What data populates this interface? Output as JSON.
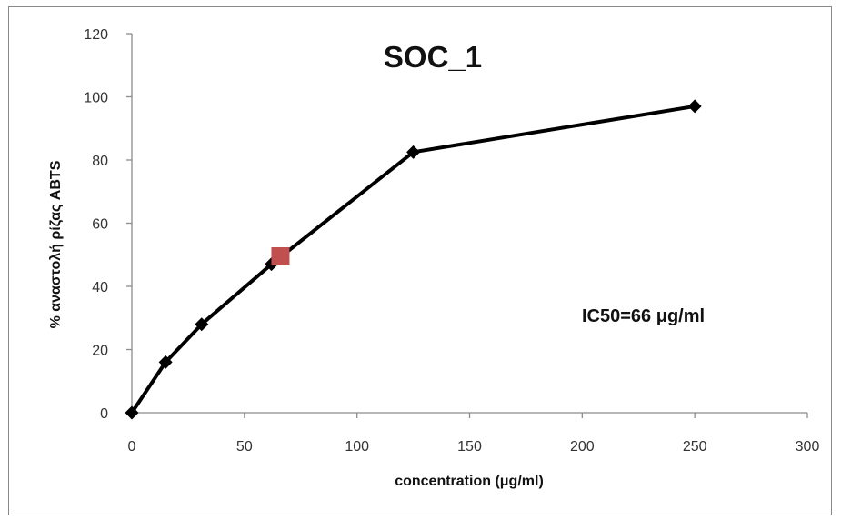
{
  "chart_data": {
    "type": "scatter",
    "title": "SOC_1",
    "xlabel": "concentration (μg/ml)",
    "ylabel": "% αναστολή ρίζας ABTS",
    "xlim": [
      0,
      300
    ],
    "ylim": [
      0,
      120
    ],
    "x_ticks": [
      "0",
      "50",
      "100",
      "150",
      "200",
      "250",
      "300"
    ],
    "y_ticks": [
      "0",
      "20",
      "40",
      "60",
      "80",
      "100",
      "120"
    ],
    "grid": false,
    "legend": "none",
    "series": [
      {
        "marker": "diamond",
        "color": "#000000",
        "line": true,
        "points": [
          {
            "x": 0,
            "y": 0
          },
          {
            "x": 15,
            "y": 16
          },
          {
            "x": 31,
            "y": 28
          },
          {
            "x": 62,
            "y": 47
          },
          {
            "x": 125,
            "y": 82.5
          },
          {
            "x": 250,
            "y": 97
          }
        ]
      },
      {
        "marker": "square",
        "color": "#c0504d",
        "line": false,
        "points": [
          {
            "x": 66,
            "y": 49.5
          }
        ]
      }
    ],
    "annotation": "IC50=66 μg/ml"
  }
}
